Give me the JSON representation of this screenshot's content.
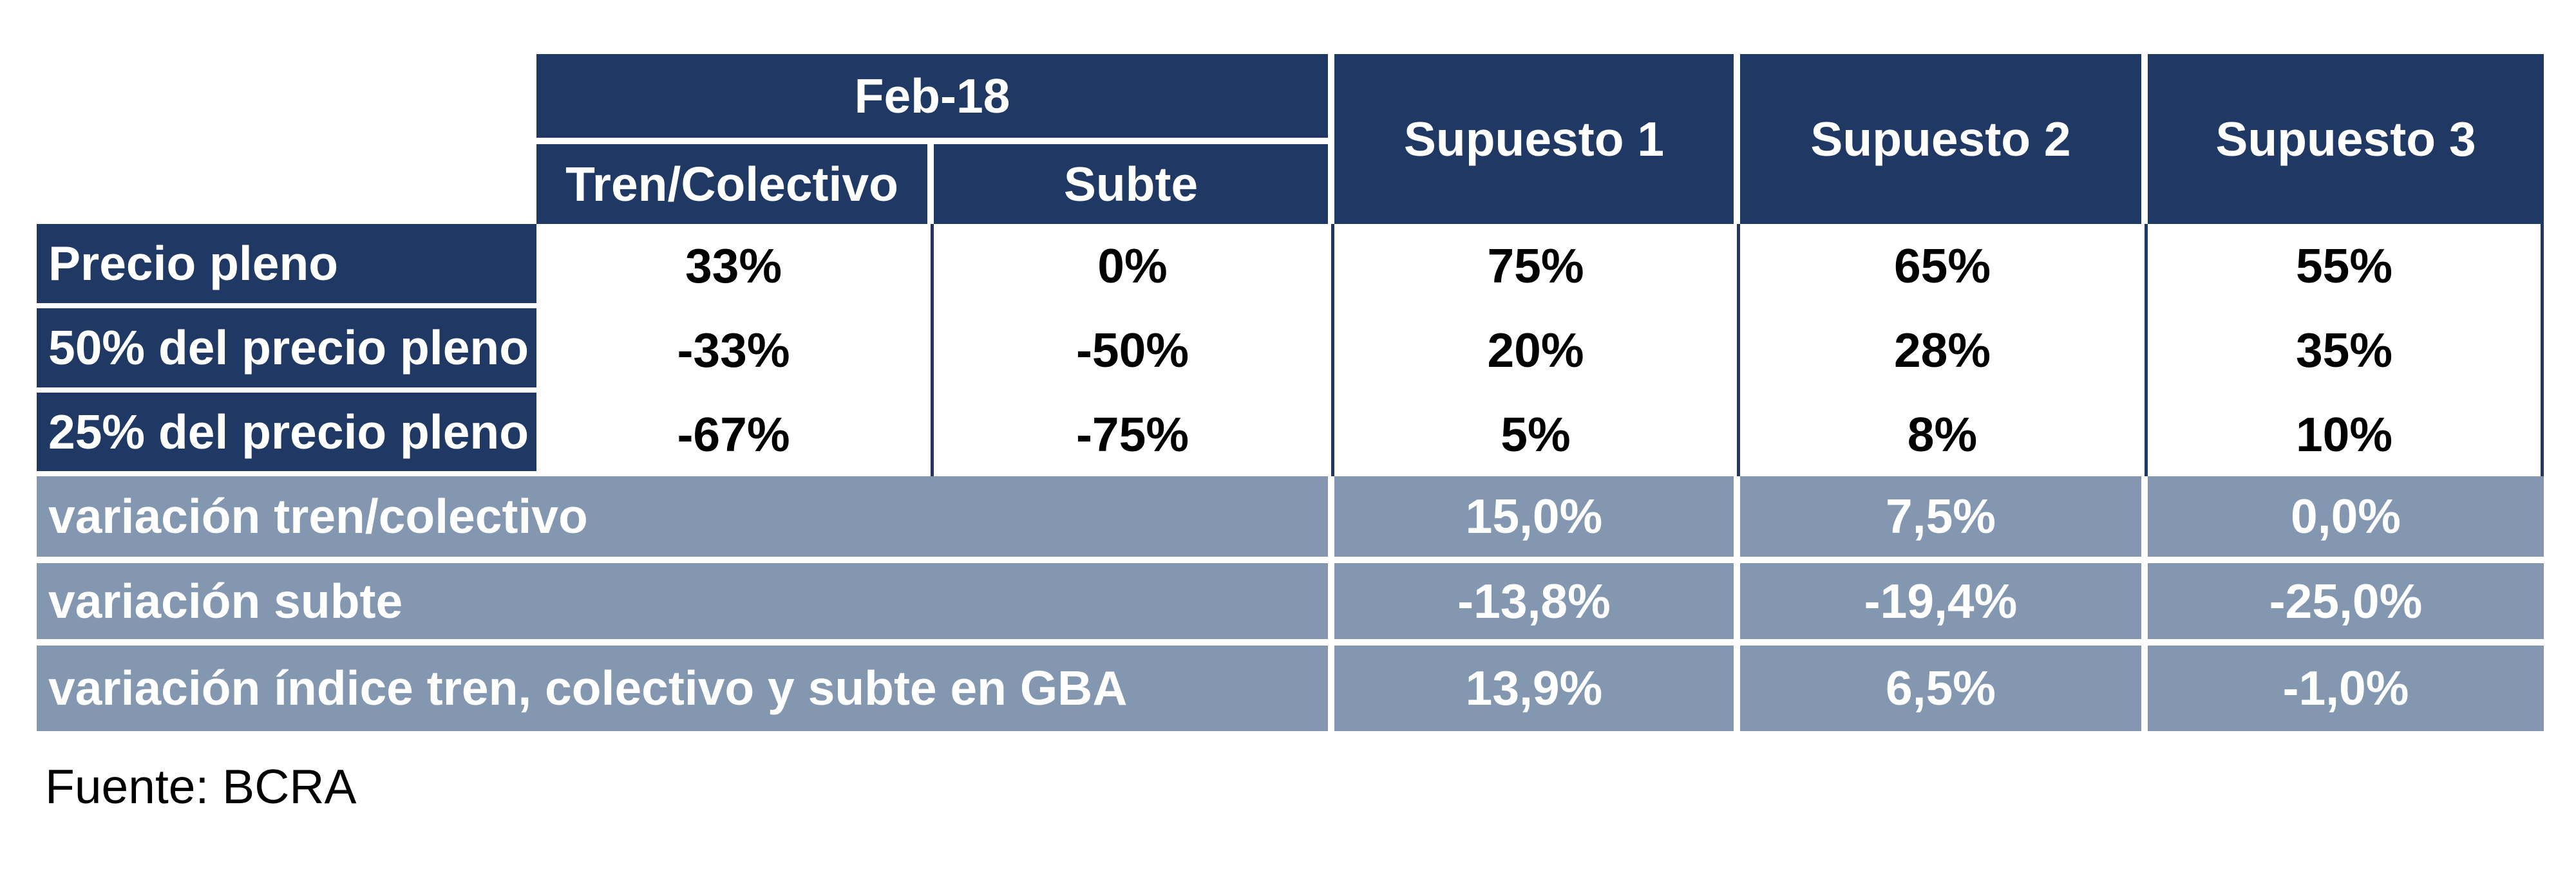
{
  "table": {
    "period_header": "Feb-18",
    "mode_headers": [
      "Tren/Colectivo",
      "Subte"
    ],
    "scenario_headers": [
      "Supuesto 1",
      "Supuesto 2",
      "Supuesto 3"
    ],
    "price_rows": [
      {
        "label": "Precio pleno",
        "values": [
          "33%",
          "0%",
          "75%",
          "65%",
          "55%"
        ]
      },
      {
        "label": "50% del precio pleno",
        "values": [
          "-33%",
          "-50%",
          "20%",
          "28%",
          "35%"
        ]
      },
      {
        "label": "25% del precio pleno",
        "values": [
          "-67%",
          "-75%",
          "5%",
          "8%",
          "10%"
        ]
      }
    ],
    "variation_rows": [
      {
        "label": "variación tren/colectivo",
        "values": [
          "15,0%",
          "7,5%",
          "0,0%"
        ]
      },
      {
        "label": "variación subte",
        "values": [
          "-13,8%",
          "-19,4%",
          "-25,0%"
        ]
      },
      {
        "label": "variación índice tren, colectivo y subte en GBA",
        "values": [
          "13,9%",
          "6,5%",
          "-1,0%"
        ]
      }
    ]
  },
  "footer": {
    "source_label": "Fuente: BCRA"
  },
  "colors": {
    "navy": "#1F3864",
    "blue_gray": "#8497B0",
    "cell_white": "#FFFFFF",
    "text_black": "#000000"
  }
}
